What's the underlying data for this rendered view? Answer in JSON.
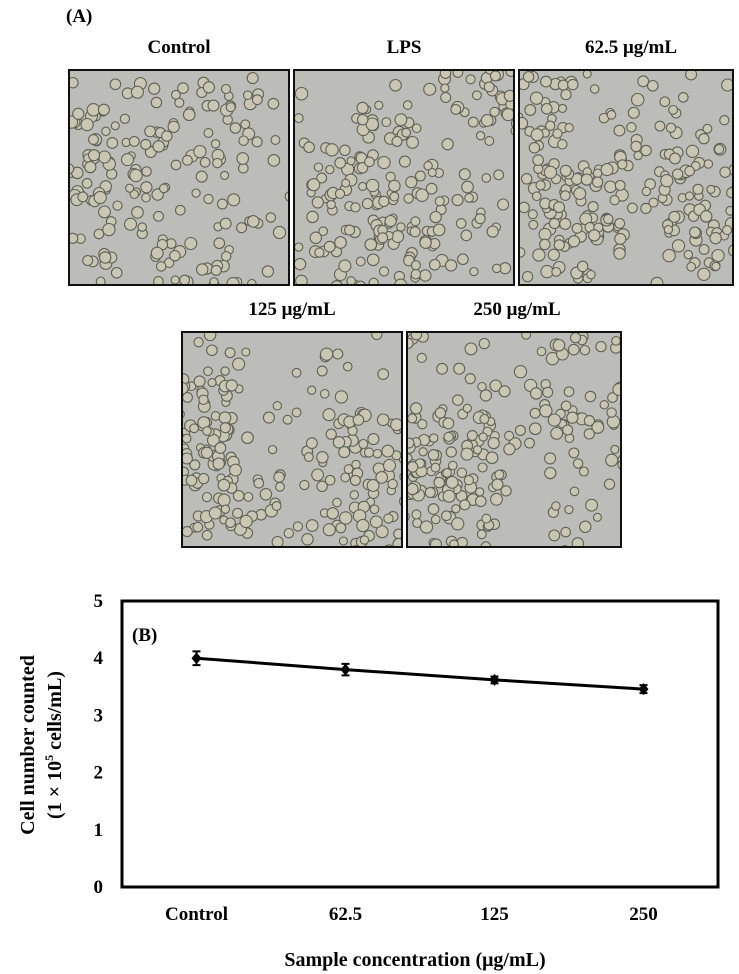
{
  "panel_a": {
    "label": "(A)",
    "images": [
      {
        "title": "Control",
        "density": 0.55
      },
      {
        "title": "LPS",
        "density": 0.7
      },
      {
        "title": "62.5 μg/mL",
        "density": 0.72
      },
      {
        "title": "125 μg/mL",
        "density": 0.75
      },
      {
        "title": "250 μg/mL",
        "density": 0.68
      }
    ]
  },
  "chart_data": {
    "type": "line",
    "panel_label": "(B)",
    "categories": [
      "Control",
      "62.5",
      "125",
      "250"
    ],
    "series": [
      {
        "values": [
          4.0,
          3.8,
          3.62,
          3.46
        ],
        "errors": [
          0.12,
          0.1,
          0.06,
          0.07
        ]
      }
    ],
    "xlabel": "Sample concentration (μg/mL)",
    "ylabel_line1": "Cell number counted",
    "ylabel_line2_prefix": "(1 × 10",
    "ylabel_line2_sup": "5",
    "ylabel_line2_suffix": " cells/mL)",
    "ylim": [
      0,
      5
    ],
    "yticks": [
      "0",
      "1",
      "2",
      "3",
      "4",
      "5"
    ],
    "grid": false,
    "line_color": "#000000"
  }
}
